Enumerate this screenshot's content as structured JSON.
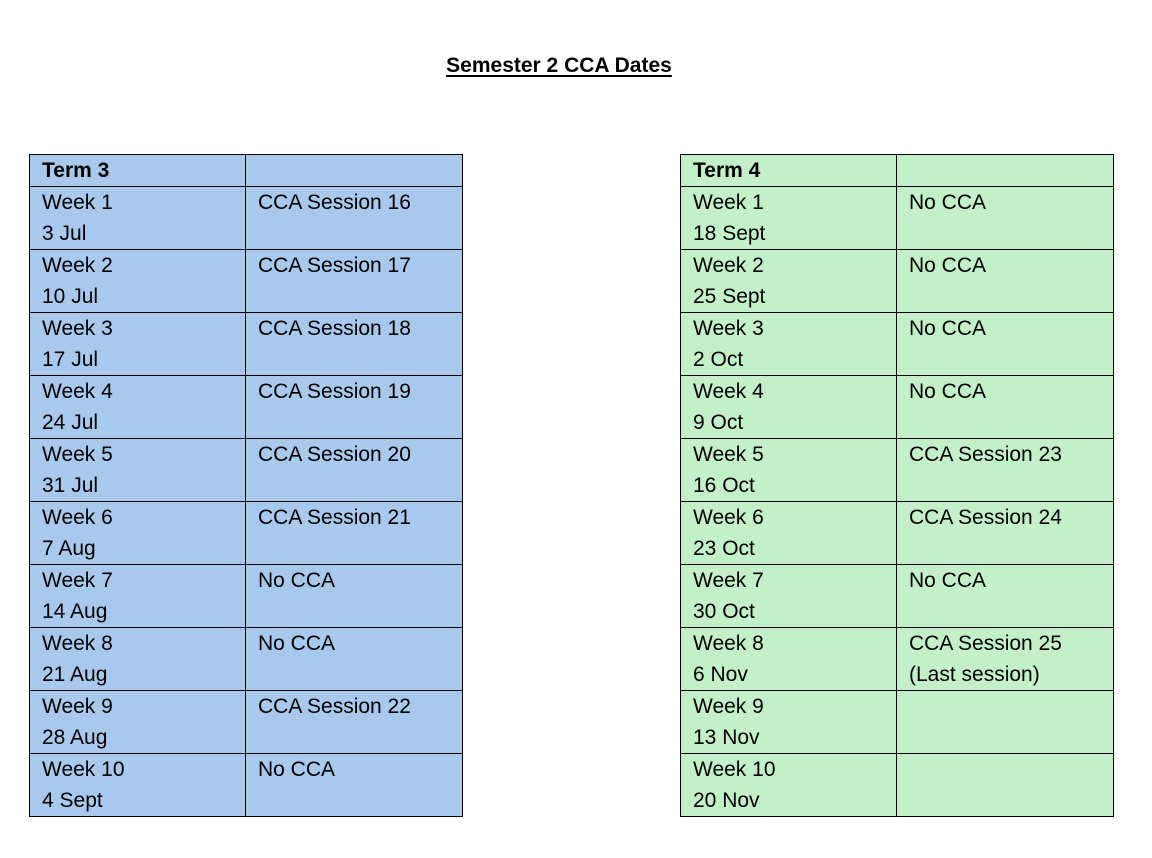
{
  "title": "Semester 2 CCA Dates",
  "colors": {
    "term3_fill": "#a8c9ec",
    "term4_fill": "#c3f0c8",
    "border": "#000000"
  },
  "tables": [
    {
      "heading": "Term 3",
      "heading_second": "",
      "rows": [
        {
          "week": "Week 1",
          "date": "3 Jul",
          "session": "CCA Session 16",
          "note": ""
        },
        {
          "week": "Week 2",
          "date": "10 Jul",
          "session": "CCA Session 17",
          "note": ""
        },
        {
          "week": "Week 3",
          "date": "17 Jul",
          "session": "CCA Session 18",
          "note": ""
        },
        {
          "week": "Week 4",
          "date": "24 Jul",
          "session": "CCA Session 19",
          "note": ""
        },
        {
          "week": "Week 5",
          "date": "31 Jul",
          "session": "CCA Session 20",
          "note": ""
        },
        {
          "week": "Week 6",
          "date": "7 Aug",
          "session": "CCA Session 21",
          "note": ""
        },
        {
          "week": "Week 7",
          "date": "14 Aug",
          "session": "No CCA",
          "note": ""
        },
        {
          "week": "Week 8",
          "date": "21 Aug",
          "session": "No CCA",
          "note": ""
        },
        {
          "week": "Week 9",
          "date": "28 Aug",
          "session": "CCA Session 22",
          "note": ""
        },
        {
          "week": "Week 10",
          "date": "4 Sept",
          "session": "No CCA",
          "note": ""
        }
      ]
    },
    {
      "heading": "Term 4",
      "heading_second": "",
      "rows": [
        {
          "week": "Week 1",
          "date": "18 Sept",
          "session": "No CCA",
          "note": ""
        },
        {
          "week": "Week 2",
          "date": "25 Sept",
          "session": "No CCA",
          "note": ""
        },
        {
          "week": "Week 3",
          "date": "2 Oct",
          "session": "No CCA",
          "note": ""
        },
        {
          "week": "Week 4",
          "date": "9 Oct",
          "session": "No CCA",
          "note": ""
        },
        {
          "week": "Week 5",
          "date": "16 Oct",
          "session": "CCA Session 23",
          "note": ""
        },
        {
          "week": "Week 6",
          "date": "23 Oct",
          "session": "CCA Session 24",
          "note": ""
        },
        {
          "week": "Week 7",
          "date": "30 Oct",
          "session": "No CCA",
          "note": ""
        },
        {
          "week": "Week 8",
          "date": "6 Nov",
          "session": "CCA Session 25",
          "note": "(Last session)"
        },
        {
          "week": "Week 9",
          "date": "13 Nov",
          "session": "",
          "note": ""
        },
        {
          "week": "Week 10",
          "date": "20 Nov",
          "session": "",
          "note": ""
        }
      ]
    }
  ]
}
